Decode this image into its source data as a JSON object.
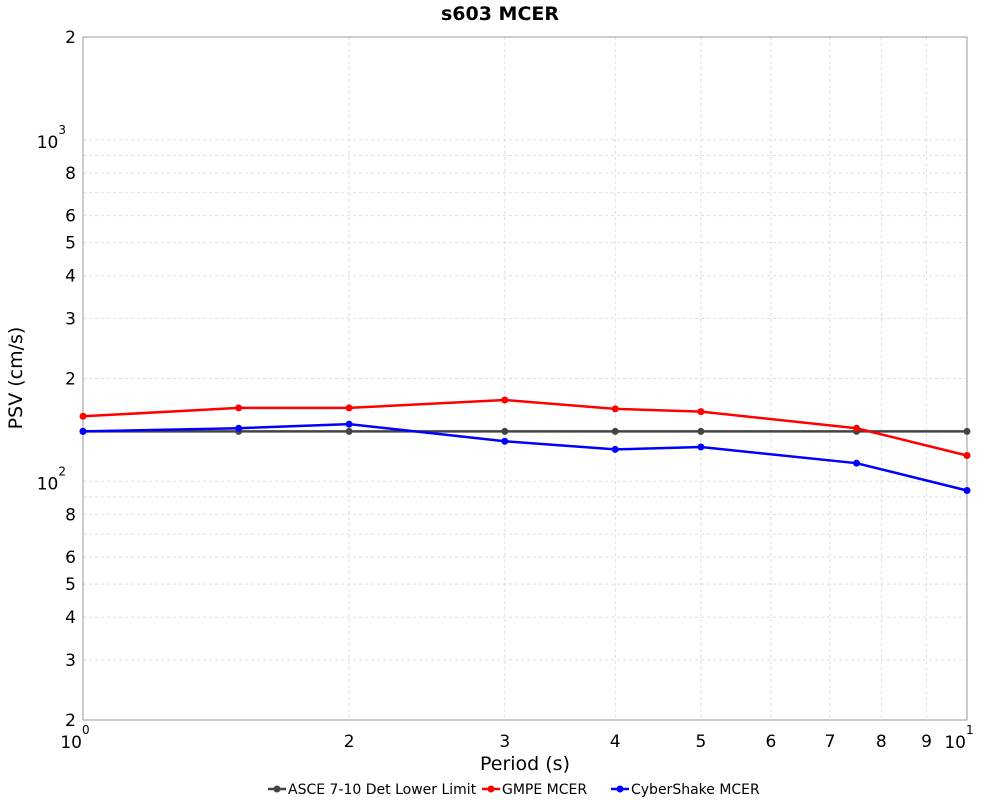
{
  "chart_data": {
    "type": "line",
    "title": "s603 MCER",
    "xlabel": "Period (s)",
    "ylabel": "PSV (cm/s)",
    "xscale": "log",
    "yscale": "log",
    "xlim": [
      1,
      10
    ],
    "ylim": [
      20,
      2000
    ],
    "grid": true,
    "legend_position": "bottom",
    "x_ticks": [
      {
        "value": 1,
        "base": "10",
        "exp": "0"
      },
      {
        "value": 2,
        "base": "2",
        "exp": ""
      },
      {
        "value": 3,
        "base": "3",
        "exp": ""
      },
      {
        "value": 4,
        "base": "4",
        "exp": ""
      },
      {
        "value": 5,
        "base": "5",
        "exp": ""
      },
      {
        "value": 6,
        "base": "6",
        "exp": ""
      },
      {
        "value": 7,
        "base": "7",
        "exp": ""
      },
      {
        "value": 8,
        "base": "8",
        "exp": ""
      },
      {
        "value": 9,
        "base": "9",
        "exp": ""
      },
      {
        "value": 10,
        "base": "10",
        "exp": "1"
      }
    ],
    "y_ticks": [
      {
        "value": 20,
        "base": "2",
        "exp": ""
      },
      {
        "value": 30,
        "base": "3",
        "exp": ""
      },
      {
        "value": 40,
        "base": "4",
        "exp": ""
      },
      {
        "value": 50,
        "base": "5",
        "exp": ""
      },
      {
        "value": 60,
        "base": "6",
        "exp": ""
      },
      {
        "value": 80,
        "base": "8",
        "exp": ""
      },
      {
        "value": 100,
        "base": "10",
        "exp": "2"
      },
      {
        "value": 200,
        "base": "2",
        "exp": ""
      },
      {
        "value": 300,
        "base": "3",
        "exp": ""
      },
      {
        "value": 400,
        "base": "4",
        "exp": ""
      },
      {
        "value": 500,
        "base": "5",
        "exp": ""
      },
      {
        "value": 600,
        "base": "6",
        "exp": ""
      },
      {
        "value": 800,
        "base": "8",
        "exp": ""
      },
      {
        "value": 1000,
        "base": "10",
        "exp": "3"
      },
      {
        "value": 2000,
        "base": "2",
        "exp": ""
      }
    ],
    "x": [
      1,
      1.5,
      2,
      3,
      4,
      5,
      7.5,
      10
    ],
    "series": [
      {
        "name": "ASCE 7-10 Det Lower Limit",
        "color": "#444444",
        "values": [
          140,
          140,
          140,
          140,
          140,
          140,
          140,
          140
        ]
      },
      {
        "name": "GMPE MCER",
        "color": "#ff0000",
        "values": [
          155,
          164,
          164,
          173,
          163,
          160,
          143,
          119
        ]
      },
      {
        "name": "CyberShake MCER",
        "color": "#0000ff",
        "values": [
          140,
          143,
          147,
          131,
          124,
          126,
          113,
          94
        ]
      }
    ]
  }
}
